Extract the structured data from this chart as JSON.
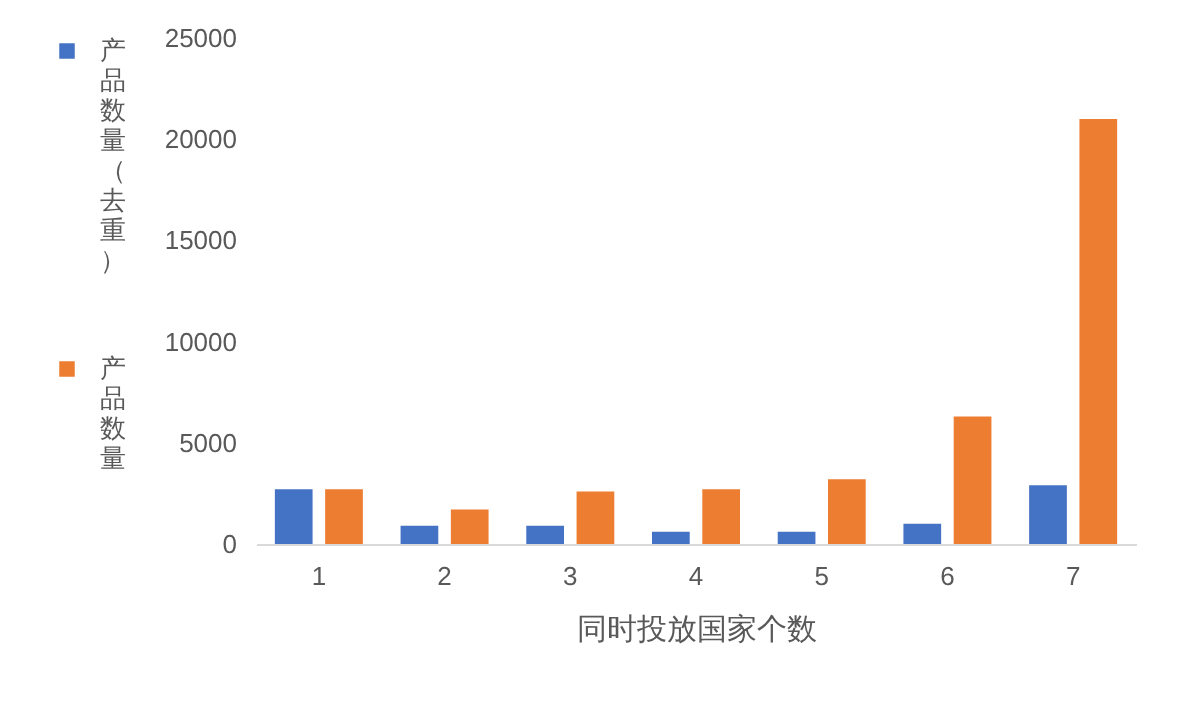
{
  "chart_data": {
    "type": "bar",
    "xlabel": "同时投放国家个数",
    "categories": [
      "1",
      "2",
      "3",
      "4",
      "5",
      "6",
      "7"
    ],
    "series": [
      {
        "name": "产品数量（去重）",
        "color": "#4472c4",
        "values": [
          2700,
          900,
          900,
          600,
          600,
          1000,
          2900
        ]
      },
      {
        "name": "产品数量",
        "color": "#ed7d31",
        "values": [
          2700,
          1700,
          2600,
          2700,
          3200,
          6300,
          21000
        ]
      }
    ],
    "ylim": [
      0,
      25000
    ],
    "yticks": [
      0,
      5000,
      10000,
      15000,
      20000,
      25000
    ],
    "grid": false,
    "legend": "left"
  }
}
